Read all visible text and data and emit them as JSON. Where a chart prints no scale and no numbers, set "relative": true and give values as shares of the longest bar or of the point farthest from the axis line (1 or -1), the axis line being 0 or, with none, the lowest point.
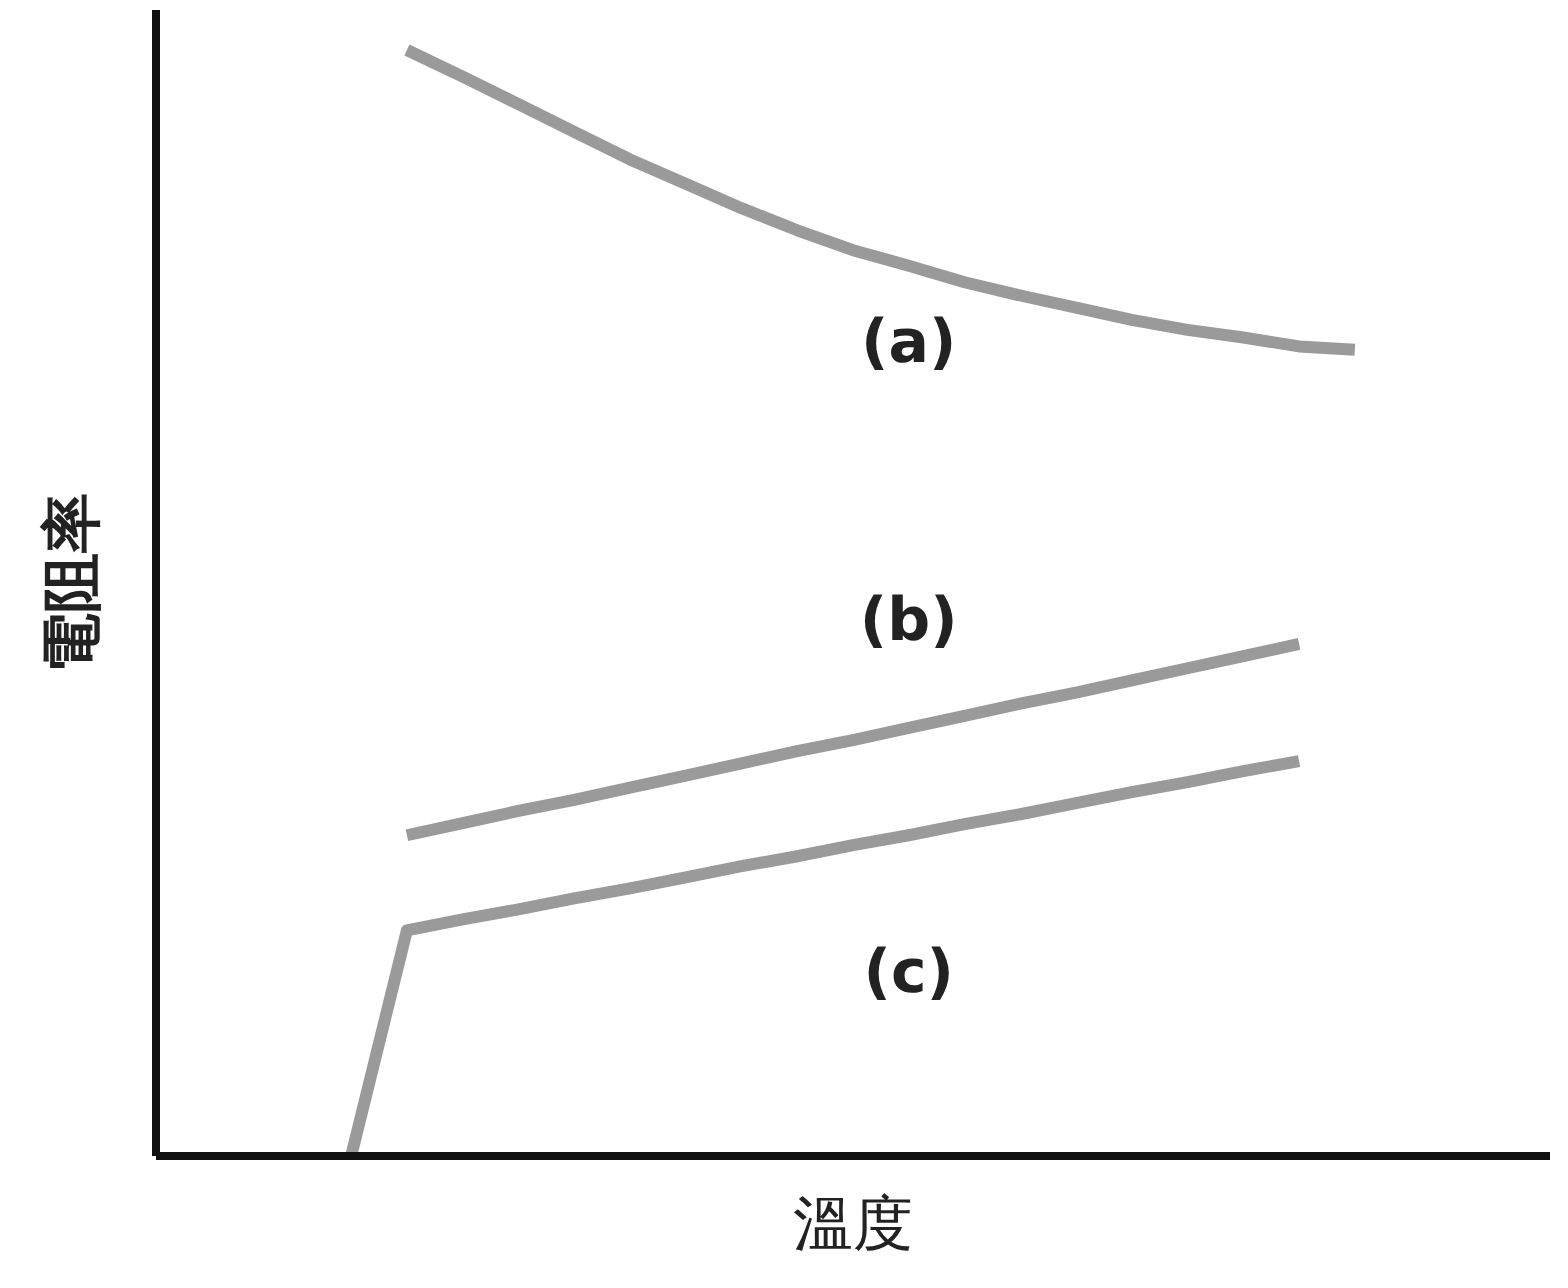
{
  "chart_data": {
    "type": "line",
    "xlabel": "溫度",
    "ylabel": "電阻率",
    "relative": true,
    "marker": "none",
    "line_style": "solid",
    "categories": [
      null,
      null,
      null,
      null,
      null,
      null,
      null,
      null,
      null,
      null,
      null,
      null,
      null,
      null,
      null,
      null,
      null,
      null,
      null,
      null,
      null,
      null,
      null,
      null,
      null
    ],
    "series": [
      {
        "color": "#9a9a9a",
        "values": [
          null,
          null,
          null,
          null,
          1.0,
          0.976,
          0.951,
          0.926,
          0.901,
          0.879,
          0.857,
          0.837,
          0.819,
          0.805,
          0.79,
          0.778,
          0.767,
          0.756,
          0.747,
          0.74,
          0.732,
          0.729,
          null,
          null,
          null
        ]
      },
      {
        "color": "#9a9a9a",
        "values": [
          null,
          null,
          null,
          null,
          0.29,
          0.301,
          0.312,
          0.322,
          0.333,
          0.344,
          0.355,
          0.366,
          0.376,
          0.387,
          0.398,
          0.409,
          0.419,
          0.43,
          0.441,
          0.452,
          0.463,
          null,
          null,
          null,
          null
        ]
      },
      {
        "color": "#9a9a9a",
        "values": [
          null,
          null,
          null,
          0,
          0.204,
          0.214,
          0.223,
          0.233,
          0.242,
          0.252,
          0.262,
          0.271,
          0.281,
          0.29,
          0.3,
          0.309,
          0.319,
          0.329,
          0.338,
          0.348,
          0.357,
          null,
          null,
          null,
          null
        ]
      }
    ],
    "annotations": [
      "(a)",
      "(b)",
      "(c)"
    ]
  }
}
